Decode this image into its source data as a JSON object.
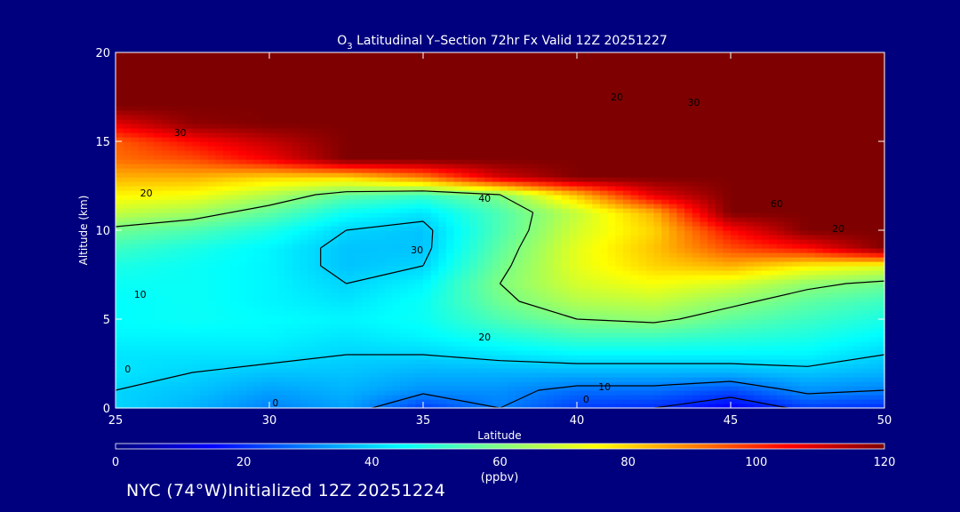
{
  "chart_data": {
    "type": "heatmap",
    "title_prefix": "O",
    "title_subscript": "3",
    "title_suffix": " Latitudinal Y–Section 72hr  Fx Valid 12Z 20251227",
    "xlabel": "Latitude",
    "ylabel": "Altitude (km)",
    "xlim": [
      25,
      50
    ],
    "ylim": [
      0,
      20
    ],
    "x_ticks": [
      25,
      30,
      35,
      40,
      45,
      50
    ],
    "y_ticks": [
      0,
      5,
      10,
      15,
      20
    ],
    "colorbar": {
      "min": 0,
      "max": 120,
      "ticks": [
        0,
        20,
        40,
        60,
        80,
        100,
        120
      ],
      "unit": "(ppbv)",
      "colors": [
        "#00007f",
        "#0000ff",
        "#0080ff",
        "#00ffff",
        "#80ff80",
        "#ffff00",
        "#ff8000",
        "#ff0000",
        "#7f0000"
      ]
    },
    "grid_lats": [
      25,
      27.5,
      30,
      32.5,
      35,
      37.5,
      40,
      42.5,
      45,
      47.5,
      50
    ],
    "grid_alts": [
      0,
      1,
      2,
      3,
      4,
      5,
      6,
      7,
      8,
      9,
      10,
      11,
      12,
      13,
      14,
      15,
      16,
      17,
      18,
      19,
      20
    ],
    "values": [
      [
        40,
        36,
        30,
        34,
        22,
        30,
        22,
        20,
        14,
        22,
        20
      ],
      [
        40,
        38,
        34,
        36,
        32,
        32,
        28,
        28,
        24,
        32,
        30
      ],
      [
        42,
        40,
        38,
        38,
        36,
        36,
        36,
        36,
        36,
        38,
        36
      ],
      [
        42,
        42,
        42,
        40,
        40,
        42,
        44,
        44,
        44,
        44,
        40
      ],
      [
        44,
        44,
        44,
        42,
        44,
        48,
        52,
        52,
        50,
        48,
        44
      ],
      [
        45,
        46,
        45,
        44,
        46,
        54,
        60,
        62,
        56,
        52,
        48
      ],
      [
        45,
        46,
        44,
        42,
        46,
        58,
        66,
        68,
        62,
        56,
        52
      ],
      [
        46,
        46,
        44,
        40,
        44,
        60,
        70,
        74,
        70,
        62,
        58
      ],
      [
        48,
        46,
        44,
        38,
        40,
        58,
        72,
        80,
        84,
        76,
        72
      ],
      [
        52,
        48,
        44,
        38,
        38,
        56,
        72,
        82,
        96,
        104,
        120
      ],
      [
        58,
        54,
        48,
        40,
        38,
        54,
        70,
        80,
        104,
        120,
        120
      ],
      [
        68,
        64,
        56,
        46,
        42,
        54,
        68,
        84,
        120,
        120,
        120
      ],
      [
        76,
        74,
        66,
        56,
        52,
        60,
        82,
        108,
        120,
        120,
        120
      ],
      [
        84,
        84,
        80,
        80,
        90,
        110,
        120,
        120,
        120,
        120,
        120
      ],
      [
        92,
        96,
        106,
        120,
        120,
        120,
        120,
        120,
        120,
        120,
        120
      ],
      [
        94,
        104,
        112,
        120,
        120,
        120,
        120,
        120,
        120,
        120,
        120
      ],
      [
        108,
        118,
        120,
        120,
        120,
        120,
        120,
        120,
        120,
        120,
        120
      ],
      [
        120,
        120,
        120,
        120,
        120,
        120,
        120,
        120,
        120,
        120,
        120
      ],
      [
        120,
        120,
        120,
        120,
        120,
        120,
        120,
        120,
        120,
        120,
        120
      ],
      [
        120,
        120,
        120,
        120,
        120,
        120,
        120,
        120,
        120,
        120,
        120
      ],
      [
        120,
        120,
        120,
        120,
        120,
        120,
        120,
        120,
        120,
        120,
        120
      ]
    ],
    "contour_labels": [
      {
        "text": "0",
        "lat": 25.4,
        "alt": 2.2
      },
      {
        "text": "0",
        "lat": 30.2,
        "alt": 0.3
      },
      {
        "text": "0",
        "lat": 40.3,
        "alt": 0.5
      },
      {
        "text": "10",
        "lat": 25.8,
        "alt": 6.4
      },
      {
        "text": "10",
        "lat": 40.9,
        "alt": 1.2
      },
      {
        "text": "20",
        "lat": 26.0,
        "alt": 12.1
      },
      {
        "text": "20",
        "lat": 37.0,
        "alt": 4.0
      },
      {
        "text": "20",
        "lat": 41.3,
        "alt": 17.5
      },
      {
        "text": "20",
        "lat": 48.5,
        "alt": 10.1
      },
      {
        "text": "30",
        "lat": 27.1,
        "alt": 15.5
      },
      {
        "text": "30",
        "lat": 34.8,
        "alt": 8.9
      },
      {
        "text": "30",
        "lat": 43.8,
        "alt": 17.2
      },
      {
        "text": "40",
        "lat": 37.0,
        "alt": 11.8
      },
      {
        "text": "60",
        "lat": 46.5,
        "alt": 11.5
      }
    ]
  },
  "footer": {
    "text": "NYC (74°W)Initialized 12Z 20251224"
  }
}
